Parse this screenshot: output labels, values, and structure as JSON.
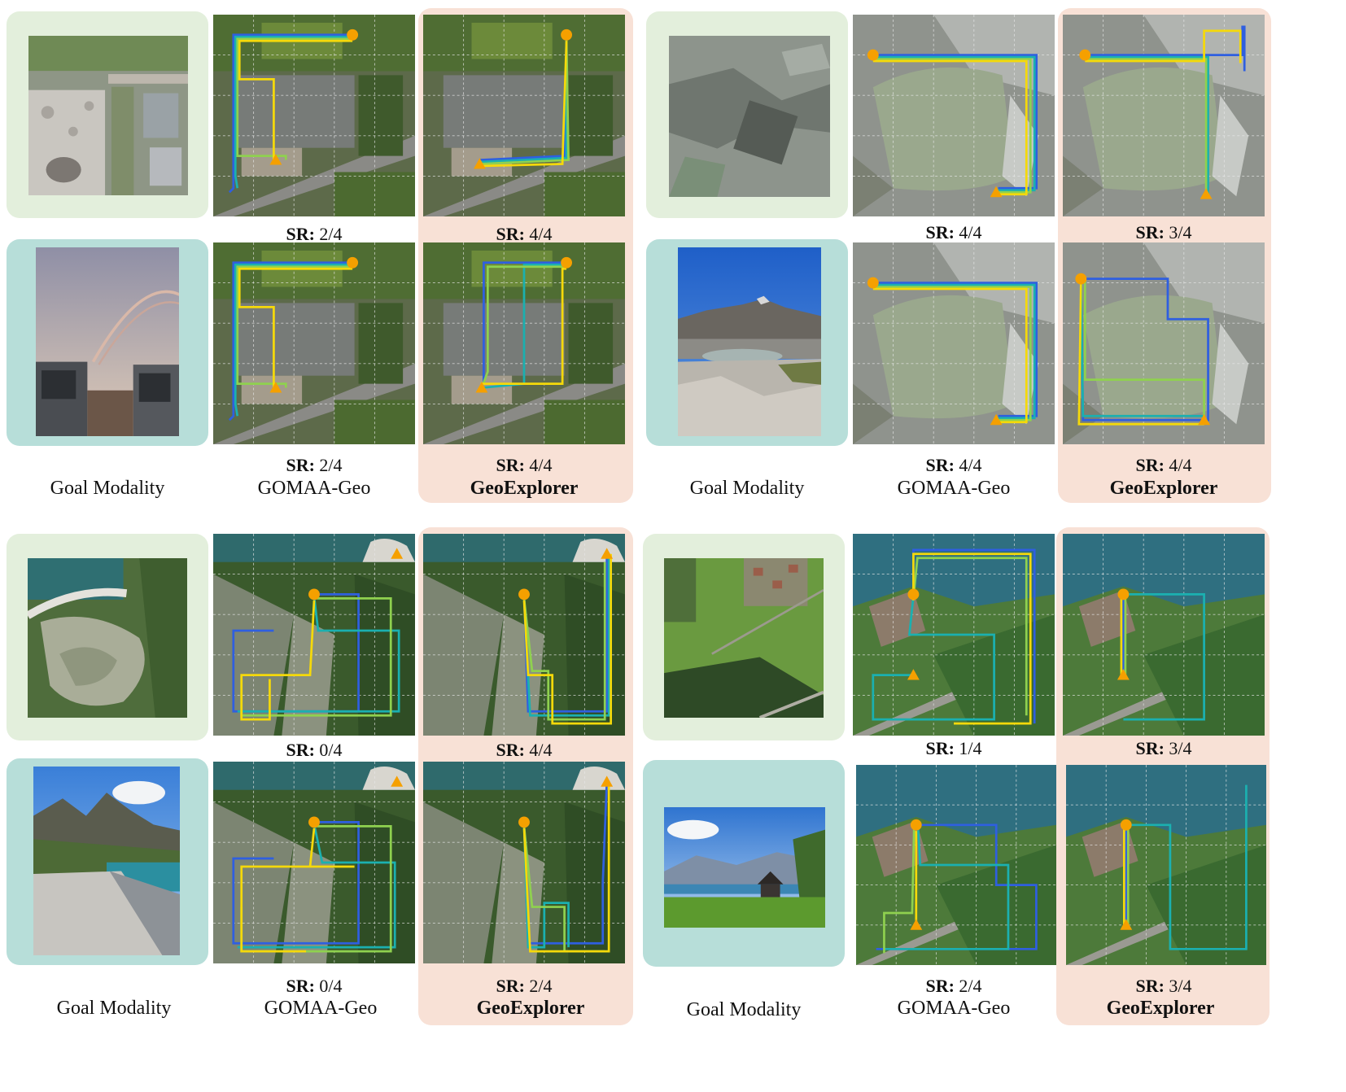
{
  "captions": {
    "goal_modality": "Goal Modality",
    "baseline": "GOMAA-Geo",
    "ours": "GeoExplorer",
    "sr_prefix": "SR:"
  },
  "panels": [
    {
      "rows": [
        {
          "baseline_sr": "2/4",
          "ours_sr": "4/4"
        },
        {
          "baseline_sr": "2/4",
          "ours_sr": "4/4"
        }
      ]
    },
    {
      "rows": [
        {
          "baseline_sr": "4/4",
          "ours_sr": "3/4"
        },
        {
          "baseline_sr": "4/4",
          "ours_sr": "4/4"
        }
      ]
    },
    {
      "rows": [
        {
          "baseline_sr": "0/4",
          "ours_sr": "4/4"
        },
        {
          "baseline_sr": "0/4",
          "ours_sr": "2/4"
        }
      ]
    },
    {
      "rows": [
        {
          "baseline_sr": "1/4",
          "ours_sr": "3/4"
        },
        {
          "baseline_sr": "2/4",
          "ours_sr": "3/4"
        }
      ]
    }
  ],
  "colors": {
    "goal_green_bg": "#e3efdc",
    "goal_teal_bg": "#b7ded9",
    "highlight_bg": "#f8e1d6",
    "start_marker": "#f5a000",
    "goal_marker": "#f5a000",
    "path_blue": "#2f5fe0",
    "path_teal": "#1bb0b0",
    "path_green": "#8fd14f",
    "path_yellow": "#f5d90a"
  },
  "icons": {
    "start": "circle-marker",
    "goal": "triangle-marker"
  }
}
